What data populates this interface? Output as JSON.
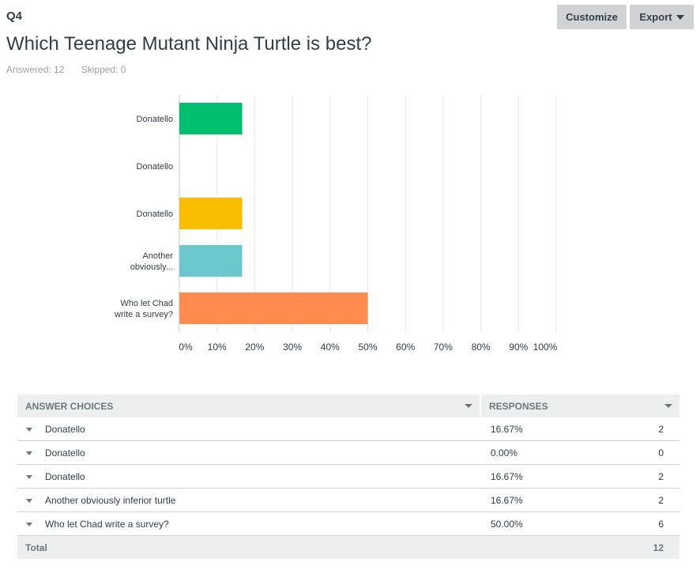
{
  "question": {
    "number": "Q4",
    "title": "Which Teenage Mutant Ninja Turtle is best?",
    "answered_label": "Answered: 12",
    "skipped_label": "Skipped: 0"
  },
  "toolbar": {
    "customize_label": "Customize",
    "export_label": "Export"
  },
  "colors": {
    "bar_colors": [
      "#00bf6f",
      "#507cb6",
      "#f9be00",
      "#6bc8cd",
      "#ff8b4f"
    ],
    "gridline": "#e6e7e8",
    "axis": "#c8cacb",
    "text": "#333e48"
  },
  "chart_data": {
    "type": "bar",
    "orientation": "horizontal",
    "categories": [
      [
        "Donatello"
      ],
      [
        "Donatello"
      ],
      [
        "Donatello"
      ],
      [
        "Another",
        "obviously..."
      ],
      [
        "Who let Chad",
        "write a survey?"
      ]
    ],
    "values": [
      16.67,
      0,
      16.67,
      16.67,
      50
    ],
    "x_ticks": [
      "0%",
      "10%",
      "20%",
      "30%",
      "40%",
      "50%",
      "60%",
      "70%",
      "80%",
      "90%",
      "100%"
    ],
    "xlim": [
      0,
      100
    ],
    "grid": true,
    "title": "",
    "xlabel": "",
    "ylabel": ""
  },
  "table": {
    "header_choices": "ANSWER CHOICES",
    "header_responses": "RESPONSES",
    "rows": [
      {
        "choice": "Donatello",
        "percent": "16.67%",
        "count": "2"
      },
      {
        "choice": "Donatello",
        "percent": "0.00%",
        "count": "0"
      },
      {
        "choice": "Donatello",
        "percent": "16.67%",
        "count": "2"
      },
      {
        "choice": "Another obviously inferior turtle",
        "percent": "16.67%",
        "count": "2"
      },
      {
        "choice": "Who let Chad write a survey?",
        "percent": "50.00%",
        "count": "6"
      }
    ],
    "total_label": "Total",
    "total_value": "12"
  }
}
